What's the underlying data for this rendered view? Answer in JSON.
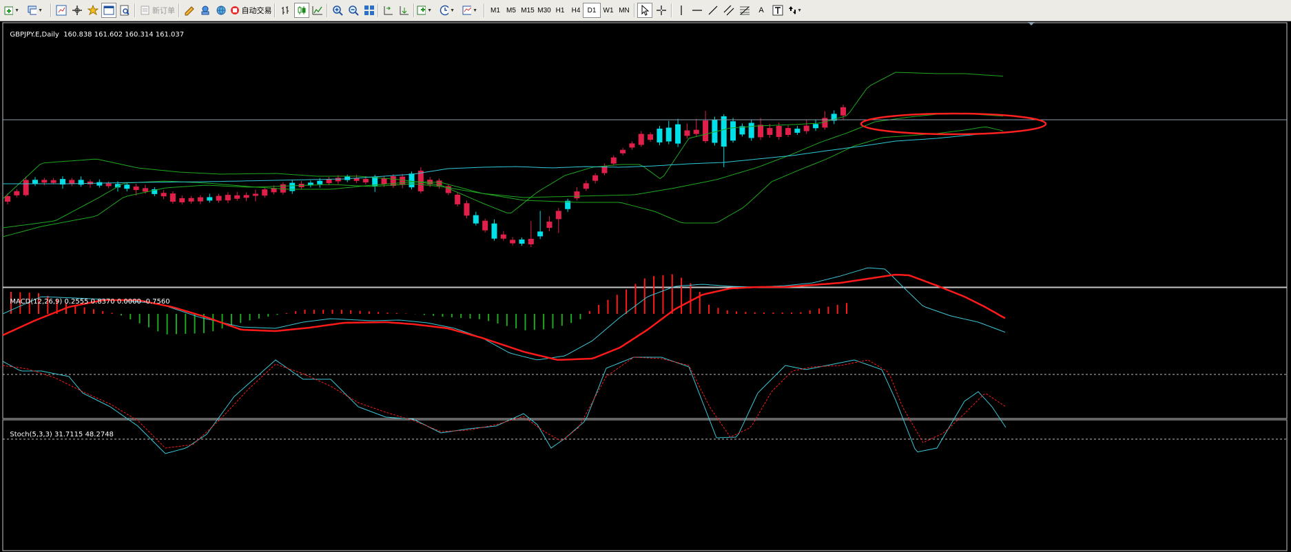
{
  "toolbar": {
    "new_order_label": "新订单",
    "auto_trade_label": "自动交易",
    "timeframes": [
      "M1",
      "M5",
      "M15",
      "M30",
      "H1",
      "H4",
      "D1",
      "W1",
      "MN"
    ],
    "active_timeframe": "D1",
    "text_tool_label": "A"
  },
  "main_chart": {
    "symbol_label": "GBPJPY.E,Daily",
    "ohlc_label": "160.838 161.602 160.314 161.037",
    "bull_color": "#00e0e8",
    "bear_color": "#e0204a",
    "band_color": "#1fa81f",
    "ma_color": "#2ec8d8",
    "price_line_color": "#8aa0b0",
    "highlight_color": "#ff2020"
  },
  "macd_panel": {
    "label": "MACD(12,26,9)",
    "values_label": "0.2555 0.8370 0.0000 -0.7560",
    "macd_line_color": "#3cc8d8",
    "signal_line_color": "#ff1a1a",
    "hist_positive_color": "#ff1a1a",
    "hist_negative_color": "#1fa81f"
  },
  "stoch_panel": {
    "label": "Stoch(5,3,3)",
    "values_label": "31.7115 48.2748",
    "main_color": "#3cc8d8",
    "signal_color": "#ff1a1a",
    "level_color": "#c0c0c0"
  }
}
